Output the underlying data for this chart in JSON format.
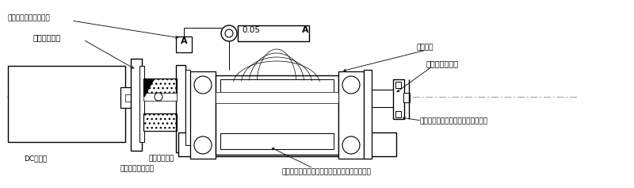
{
  "bg_color": "#ffffff",
  "fig_width": 8.0,
  "fig_height": 2.37,
  "dpi": 100,
  "labels": {
    "flange_inro": "フランジインロ固定穴",
    "motor_axis": "モータ回転軸",
    "dc_motor": "DCモータ",
    "motor_mount": "モータ取り付け台",
    "coupling": "カップリング",
    "worm": "ウォーム",
    "worm_axis": "ウォーム回転軸",
    "worm_bearing": "ウォーム回転支持ボールベアリング",
    "worm_guide_bearing": "ウォーム回転案内ボールベアリング取り付け穴",
    "tolerance": "0.05",
    "datum_A": "A"
  }
}
